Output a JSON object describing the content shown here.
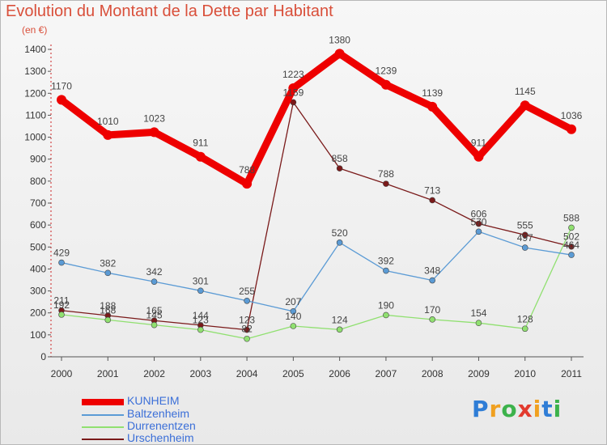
{
  "title": "Evolution du Montant de la Dette par Habitant",
  "subtitle": "(en €)",
  "logo": {
    "letters": [
      "P",
      "r",
      "o",
      "x",
      "i",
      "t",
      "i"
    ],
    "colors": [
      "#2f7dd6",
      "#f0a020",
      "#3cb24b",
      "#e23a2e",
      "#f0a020",
      "#2f7dd6",
      "#3cb24b"
    ]
  },
  "chart_data": {
    "type": "line",
    "title": "Evolution du Montant de la Dette par Habitant",
    "ylabel": "(en €)",
    "xlabel": "",
    "categories": [
      "2000",
      "2001",
      "2002",
      "2003",
      "2004",
      "2005",
      "2006",
      "2007",
      "2008",
      "2009",
      "2010",
      "2011"
    ],
    "ylim": [
      0,
      1400
    ],
    "yticks": [
      0,
      100,
      200,
      300,
      400,
      500,
      600,
      700,
      800,
      900,
      1000,
      1100,
      1200,
      1300,
      1400
    ],
    "grid": false,
    "legend_position": "bottom-left",
    "series": [
      {
        "name": "KUNHEIM",
        "color": "#ee0000",
        "values": [
          1170,
          1010,
          1023,
          911,
          788,
          1223,
          1380,
          1239,
          1139,
          911,
          1145,
          1036
        ]
      },
      {
        "name": "Baltzenheim",
        "color": "#5b9bd5",
        "values": [
          429,
          382,
          342,
          301,
          255,
          207,
          520,
          392,
          348,
          570,
          497,
          464
        ]
      },
      {
        "name": "Durrenentzen",
        "color": "#90e070",
        "values": [
          192,
          168,
          145,
          123,
          82,
          140,
          124,
          190,
          170,
          154,
          128,
          588
        ]
      },
      {
        "name": "Urschenheim",
        "color": "#7a1a1a",
        "values": [
          211,
          188,
          165,
          144,
          123,
          1159,
          858,
          788,
          713,
          606,
          555,
          502
        ]
      }
    ]
  }
}
